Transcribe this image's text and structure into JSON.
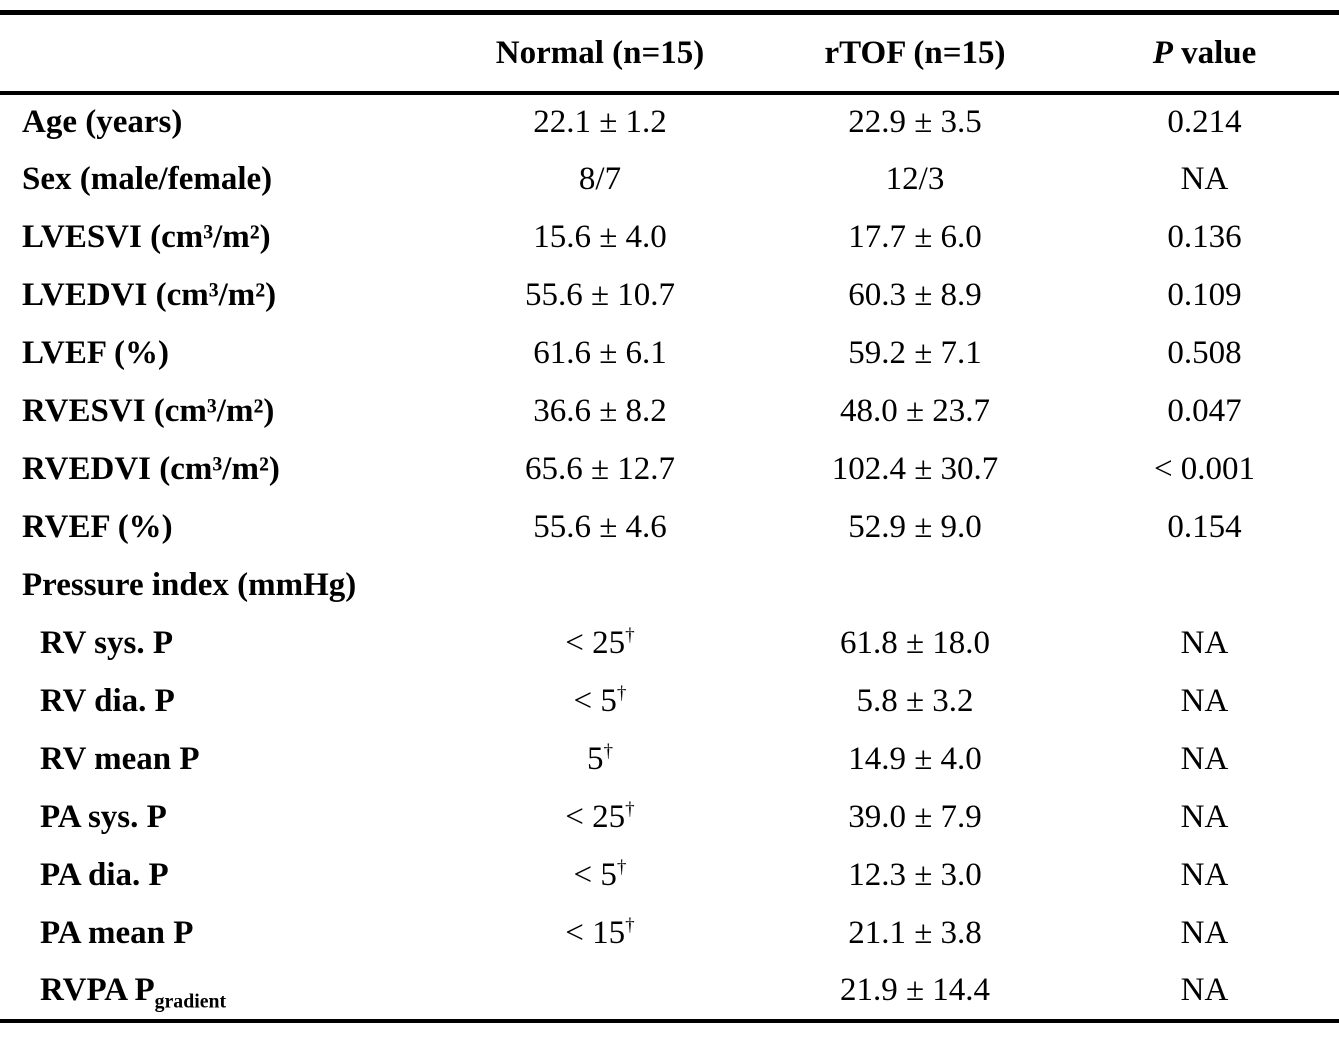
{
  "page": {
    "background": "#ffffff",
    "text_color": "#000000"
  },
  "table": {
    "header": {
      "label": "",
      "normal": "Normal (n=15)",
      "rtof": "rTOF (n=15)",
      "p_italic": "P",
      "p_rest": " value"
    },
    "rows": [
      {
        "label": "Age (years)",
        "normal": "22.1 ± 1.2",
        "rtof": "22.9 ± 3.5",
        "p": "0.214"
      },
      {
        "label": "Sex (male/female)",
        "normal": "8/7",
        "rtof": "12/3",
        "p": "NA"
      },
      {
        "label": "LVESVI (cm³/m²)",
        "normal": "15.6 ± 4.0",
        "rtof": "17.7 ± 6.0",
        "p": "0.136"
      },
      {
        "label": "LVEDVI (cm³/m²)",
        "normal": "55.6 ± 10.7",
        "rtof": "60.3 ± 8.9",
        "p": "0.109"
      },
      {
        "label": "LVEF (%)",
        "normal": "61.6 ± 6.1",
        "rtof": "59.2 ± 7.1",
        "p": "0.508"
      },
      {
        "label": "RVESVI (cm³/m²)",
        "normal": "36.6 ± 8.2",
        "rtof": "48.0 ± 23.7",
        "p": "0.047"
      },
      {
        "label": "RVEDVI (cm³/m²)",
        "normal": "65.6 ± 12.7",
        "rtof": "102.4 ± 30.7",
        "p": "< 0.001"
      },
      {
        "label": "RVEF (%)",
        "normal": "55.6 ± 4.6",
        "rtof": "52.9 ± 9.0",
        "p": "0.154"
      },
      {
        "label": "Pressure index (mmHg)",
        "normal": "",
        "rtof": "",
        "p": ""
      },
      {
        "label": "RV sys. P",
        "normal": "< 25",
        "normal_sup": "†",
        "rtof": "61.8 ± 18.0",
        "p": "NA"
      },
      {
        "label": "RV dia. P",
        "normal": "< 5",
        "normal_sup": "†",
        "rtof": "5.8 ± 3.2",
        "p": "NA"
      },
      {
        "label": "RV mean P",
        "normal": "5",
        "normal_sup": "†",
        "rtof": "14.9 ± 4.0",
        "p": "NA"
      },
      {
        "label": "PA sys. P",
        "normal": "< 25",
        "normal_sup": "†",
        "rtof": "39.0 ± 7.9",
        "p": "NA"
      },
      {
        "label": "PA dia. P",
        "normal": "< 5",
        "normal_sup": "†",
        "rtof": "12.3 ± 3.0",
        "p": "NA"
      },
      {
        "label": "PA mean P",
        "normal": "< 15",
        "normal_sup": "†",
        "rtof": "21.1 ± 3.8",
        "p": "NA"
      },
      {
        "label": "RVPA P",
        "label_sub": "gradient",
        "normal": "",
        "rtof": "21.9 ± 14.4",
        "p": "NA"
      }
    ]
  }
}
